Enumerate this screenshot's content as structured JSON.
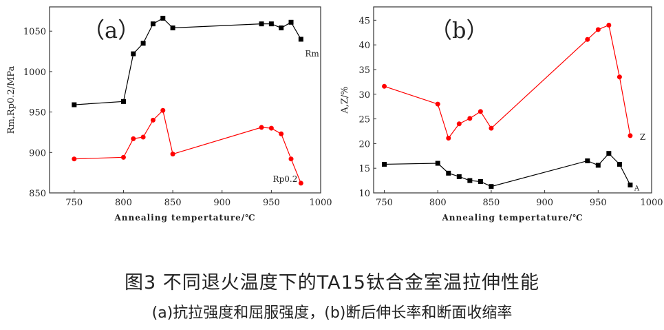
{
  "chart_data": [
    {
      "type": "line",
      "panel_label": "（a）",
      "xlabel": "Annealing tempertature/℃",
      "ylabel": "Rm,Rp0.2/MPa",
      "xlim": [
        725,
        1000
      ],
      "ylim": [
        850,
        1080
      ],
      "xticks": [
        750,
        800,
        850,
        900,
        950,
        1000
      ],
      "yticks": [
        850,
        900,
        950,
        1000,
        1050
      ],
      "x": [
        750,
        800,
        810,
        820,
        830,
        840,
        850,
        940,
        950,
        960,
        970,
        980
      ],
      "series": [
        {
          "name": "Rm",
          "color": "#000000",
          "marker": "square",
          "values": [
            959,
            963,
            1022,
            1035,
            1059,
            1066,
            1054,
            1059,
            1059,
            1054,
            1061,
            1040
          ]
        },
        {
          "name": "Rp0.2",
          "color": "#ff0000",
          "marker": "circle",
          "values": [
            892,
            894,
            917,
            919,
            940,
            952,
            898,
            931,
            930,
            923,
            892,
            862
          ]
        }
      ]
    },
    {
      "type": "line",
      "panel_label": "（b）",
      "xlabel": "Annealing tempertature/℃",
      "ylabel": "A,Z/%",
      "xlim": [
        740,
        1000
      ],
      "ylim": [
        10,
        47.7
      ],
      "xticks": [
        750,
        800,
        850,
        900,
        950,
        1000
      ],
      "yticks": [
        10,
        15,
        20,
        25,
        30,
        35,
        40,
        45
      ],
      "x": [
        750,
        800,
        810,
        820,
        830,
        840,
        850,
        940,
        950,
        960,
        970,
        980
      ],
      "series": [
        {
          "name": "Z",
          "color": "#ff0000",
          "marker": "circle",
          "values": [
            31.6,
            28,
            21.1,
            24,
            25.1,
            26.5,
            23.1,
            41.1,
            43.1,
            44,
            33.5,
            21.6
          ]
        },
        {
          "name": "A",
          "color": "#000000",
          "marker": "square",
          "values": [
            15.8,
            16,
            14,
            13.3,
            12.5,
            12.3,
            11.3,
            16.5,
            15.6,
            18,
            15.8,
            11.6
          ]
        }
      ]
    }
  ],
  "caption": {
    "title": "图3  不同退火温度下的TA15钛合金室温拉伸性能",
    "subtitle": "(a)抗拉强度和屈服强度，(b)断后伸长率和断面收缩率"
  }
}
